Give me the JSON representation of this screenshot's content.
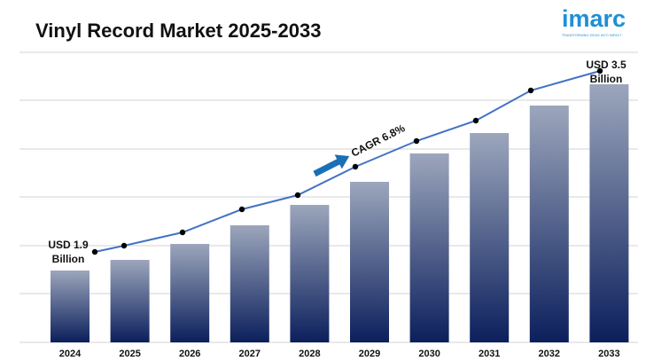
{
  "title": "Vinyl Record Market 2025-2033",
  "logo": {
    "word": "imarc",
    "tagline": "TRANSFORMING IDEAS INTO IMPACT"
  },
  "chart_data": {
    "type": "bar",
    "categories": [
      "2024",
      "2025",
      "2026",
      "2027",
      "2028",
      "2029",
      "2030",
      "2031",
      "2032",
      "2033"
    ],
    "values": [
      1.9,
      2.0,
      2.14,
      2.29,
      2.44,
      2.61,
      2.79,
      2.98,
      3.18,
      3.5
    ],
    "line_overlay": true,
    "annotations": {
      "start": [
        "USD 1.9",
        "Billion"
      ],
      "end": [
        "USD 3.5",
        "Billion"
      ],
      "cagr": "CAGR 6.8%"
    },
    "grid": true,
    "colors": {
      "bar_top": "#9ca6bc",
      "bar_bottom": "#0b1f5c",
      "line": "#4472c4",
      "marker": "#000000",
      "arrow": "#1a6fb5"
    }
  }
}
